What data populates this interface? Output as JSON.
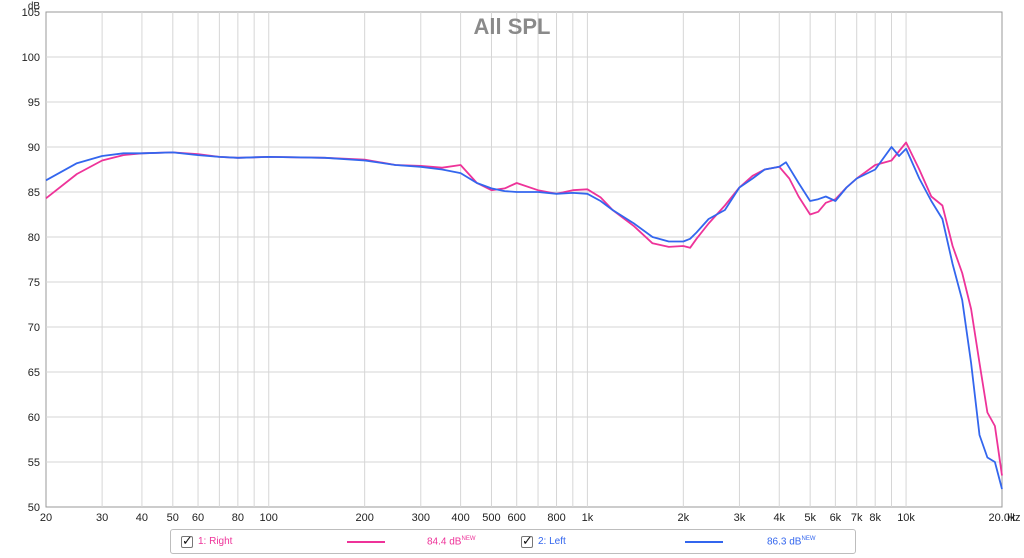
{
  "chart_data": {
    "type": "line",
    "title": "All SPL",
    "y_unit": "dB",
    "x_unit": "Hz",
    "x_scale": "log",
    "xlim": [
      20,
      20000
    ],
    "ylim": [
      50,
      105
    ],
    "y_ticks": [
      50,
      55,
      60,
      65,
      70,
      75,
      80,
      85,
      90,
      95,
      100,
      105
    ],
    "x_ticks": [
      {
        "v": 20,
        "label": "20"
      },
      {
        "v": 30,
        "label": "30"
      },
      {
        "v": 40,
        "label": "40"
      },
      {
        "v": 50,
        "label": "50"
      },
      {
        "v": 60,
        "label": "60"
      },
      {
        "v": 80,
        "label": "80"
      },
      {
        "v": 100,
        "label": "100"
      },
      {
        "v": 200,
        "label": "200"
      },
      {
        "v": 300,
        "label": "300"
      },
      {
        "v": 400,
        "label": "400"
      },
      {
        "v": 500,
        "label": "500"
      },
      {
        "v": 600,
        "label": "600"
      },
      {
        "v": 800,
        "label": "800"
      },
      {
        "v": 1000,
        "label": "1k"
      },
      {
        "v": 2000,
        "label": "2k"
      },
      {
        "v": 3000,
        "label": "3k"
      },
      {
        "v": 4000,
        "label": "4k"
      },
      {
        "v": 5000,
        "label": "5k"
      },
      {
        "v": 6000,
        "label": "6k"
      },
      {
        "v": 7000,
        "label": "7k"
      },
      {
        "v": 8000,
        "label": "8k"
      },
      {
        "v": 10000,
        "label": "10k"
      },
      {
        "v": 20000,
        "label": "20.0k"
      }
    ],
    "grid": true,
    "series": [
      {
        "name": "1: Right",
        "color": "#ee3399",
        "legend_value": "84.4 dB",
        "legend_sup": "NEW",
        "x": [
          20,
          25,
          30,
          35,
          40,
          50,
          60,
          70,
          80,
          100,
          150,
          200,
          250,
          300,
          350,
          400,
          450,
          500,
          550,
          600,
          700,
          800,
          900,
          1000,
          1100,
          1200,
          1400,
          1600,
          1800,
          2000,
          2100,
          2200,
          2400,
          2700,
          3000,
          3300,
          3600,
          4000,
          4300,
          4600,
          5000,
          5300,
          5600,
          6000,
          6500,
          7000,
          8000,
          9000,
          10000,
          11000,
          12000,
          13000,
          14000,
          15000,
          16000,
          17000,
          18000,
          19000,
          20000
        ],
        "y": [
          84.3,
          87,
          88.5,
          89.1,
          89.3,
          89.4,
          89.2,
          88.9,
          88.8,
          88.9,
          88.8,
          88.6,
          88.0,
          87.9,
          87.7,
          88.0,
          86.0,
          85.2,
          85.4,
          86.0,
          85.2,
          84.8,
          85.2,
          85.3,
          84.4,
          83.0,
          81.2,
          79.3,
          78.9,
          79.0,
          78.8,
          79.8,
          81.5,
          83.5,
          85.5,
          86.8,
          87.5,
          87.8,
          86.5,
          84.5,
          82.5,
          82.8,
          83.8,
          84.2,
          85.5,
          86.5,
          88.0,
          88.5,
          90.5,
          87.5,
          84.5,
          83.5,
          79.0,
          76.0,
          72.0,
          66.0,
          60.5,
          59.0,
          53.5
        ]
      },
      {
        "name": "2: Left",
        "color": "#3366ee",
        "legend_value": "86.3 dB",
        "legend_sup": "NEW",
        "x": [
          20,
          25,
          30,
          35,
          40,
          50,
          60,
          70,
          80,
          100,
          150,
          200,
          250,
          300,
          350,
          400,
          450,
          500,
          550,
          600,
          700,
          800,
          900,
          1000,
          1100,
          1200,
          1400,
          1600,
          1800,
          2000,
          2100,
          2200,
          2400,
          2700,
          3000,
          3300,
          3600,
          4000,
          4200,
          4600,
          5000,
          5300,
          5600,
          6000,
          6500,
          7000,
          8000,
          9000,
          9500,
          10000,
          11000,
          12000,
          13000,
          14000,
          15000,
          16000,
          17000,
          18000,
          19000,
          20000
        ],
        "y": [
          86.3,
          88.2,
          89.0,
          89.3,
          89.3,
          89.4,
          89.1,
          88.9,
          88.8,
          88.9,
          88.8,
          88.5,
          88.0,
          87.8,
          87.5,
          87.1,
          86.0,
          85.4,
          85.1,
          85.0,
          85.0,
          84.8,
          84.9,
          84.8,
          84.0,
          83.0,
          81.5,
          80.0,
          79.5,
          79.5,
          79.8,
          80.5,
          82.0,
          83.0,
          85.5,
          86.5,
          87.5,
          87.8,
          88.3,
          86.0,
          84.0,
          84.2,
          84.5,
          84.0,
          85.5,
          86.5,
          87.5,
          90.0,
          89.0,
          89.8,
          86.5,
          84.0,
          82.0,
          77.0,
          73.0,
          66.0,
          58.0,
          55.5,
          55.0,
          52.0
        ]
      }
    ]
  }
}
